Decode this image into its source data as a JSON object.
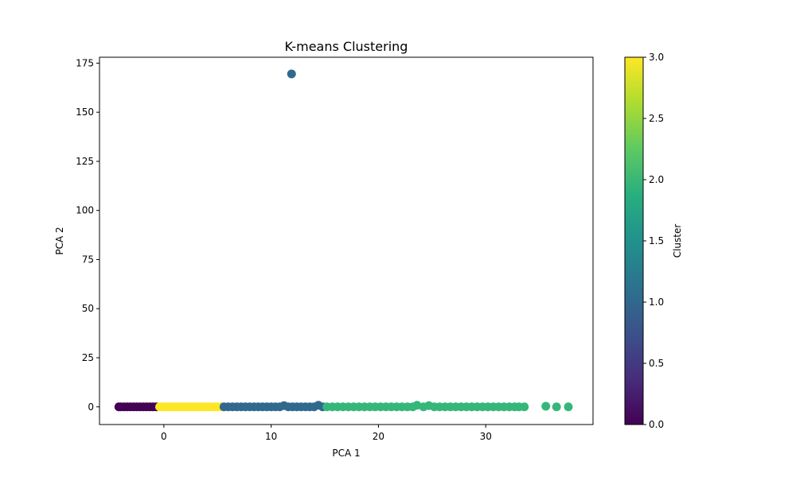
{
  "chart_data": {
    "type": "scatter",
    "title": "K-means Clustering",
    "xlabel": "PCA 1",
    "ylabel": "PCA 2",
    "xlim": [
      -6,
      40
    ],
    "ylim": [
      -9,
      178
    ],
    "x_ticks": [
      0,
      10,
      20,
      30
    ],
    "y_ticks": [
      0,
      25,
      50,
      75,
      100,
      125,
      150,
      175
    ],
    "grid": false,
    "colorbar": {
      "label": "Cluster",
      "range": [
        0.0,
        3.0
      ],
      "ticks": [
        "0.0",
        "0.5",
        "1.0",
        "1.5",
        "2.0",
        "2.5",
        "3.0"
      ],
      "colormap": "viridis"
    },
    "cluster_colors": {
      "0": "#440154",
      "1": "#31688e",
      "2": "#35b779",
      "3": "#fde725"
    },
    "series": [
      {
        "cluster": 0,
        "points": [
          [
            -4.2,
            0
          ],
          [
            -4.0,
            0
          ],
          [
            -3.7,
            0
          ],
          [
            -3.4,
            0
          ],
          [
            -3.1,
            0
          ],
          [
            -2.8,
            0
          ],
          [
            -2.5,
            0
          ],
          [
            -2.2,
            0
          ],
          [
            -1.9,
            0
          ],
          [
            -1.6,
            0
          ],
          [
            -1.3,
            0
          ],
          [
            -1.0,
            0
          ],
          [
            -0.7,
            0
          ]
        ]
      },
      {
        "cluster": 3,
        "points": [
          [
            -0.4,
            0
          ],
          [
            -0.1,
            0
          ],
          [
            0.2,
            0
          ],
          [
            0.5,
            0
          ],
          [
            0.8,
            0
          ],
          [
            1.1,
            0
          ],
          [
            1.4,
            0
          ],
          [
            1.7,
            0
          ],
          [
            2.0,
            0
          ],
          [
            2.3,
            0
          ],
          [
            2.6,
            0
          ],
          [
            2.9,
            0
          ],
          [
            3.2,
            0
          ],
          [
            3.5,
            0
          ],
          [
            3.8,
            0
          ],
          [
            4.1,
            0
          ],
          [
            4.4,
            0
          ],
          [
            4.7,
            0
          ],
          [
            5.0,
            0
          ],
          [
            5.3,
            0
          ]
        ]
      },
      {
        "cluster": 1,
        "points": [
          [
            5.6,
            0
          ],
          [
            6.0,
            0
          ],
          [
            6.4,
            0
          ],
          [
            6.8,
            0
          ],
          [
            7.2,
            0
          ],
          [
            7.6,
            0
          ],
          [
            8.0,
            0
          ],
          [
            8.4,
            0
          ],
          [
            8.8,
            0
          ],
          [
            9.2,
            0
          ],
          [
            9.6,
            0
          ],
          [
            10.0,
            0
          ],
          [
            10.4,
            0
          ],
          [
            10.8,
            0
          ],
          [
            11.2,
            0.6
          ],
          [
            11.6,
            0
          ],
          [
            12.0,
            0
          ],
          [
            12.4,
            0
          ],
          [
            12.8,
            0
          ],
          [
            13.2,
            0
          ],
          [
            13.6,
            0
          ],
          [
            14.0,
            0
          ],
          [
            14.4,
            0.8
          ],
          [
            14.8,
            0
          ],
          [
            11.9,
            169.5
          ]
        ]
      },
      {
        "cluster": 2,
        "points": [
          [
            15.2,
            0
          ],
          [
            15.7,
            0
          ],
          [
            16.2,
            0
          ],
          [
            16.7,
            0
          ],
          [
            17.2,
            0
          ],
          [
            17.7,
            0
          ],
          [
            18.2,
            0
          ],
          [
            18.7,
            0
          ],
          [
            19.2,
            0
          ],
          [
            19.7,
            0
          ],
          [
            20.2,
            0
          ],
          [
            20.7,
            0
          ],
          [
            21.2,
            0
          ],
          [
            21.7,
            0
          ],
          [
            22.2,
            0
          ],
          [
            22.7,
            0
          ],
          [
            23.2,
            0
          ],
          [
            23.6,
            0.8
          ],
          [
            24.2,
            0
          ],
          [
            24.7,
            0.6
          ],
          [
            25.2,
            0
          ],
          [
            25.7,
            0
          ],
          [
            26.2,
            0
          ],
          [
            26.7,
            0
          ],
          [
            27.2,
            0
          ],
          [
            27.7,
            0
          ],
          [
            28.2,
            0
          ],
          [
            28.7,
            0
          ],
          [
            29.2,
            0
          ],
          [
            29.7,
            0
          ],
          [
            30.2,
            0
          ],
          [
            30.7,
            0
          ],
          [
            31.2,
            0
          ],
          [
            31.7,
            0
          ],
          [
            32.2,
            0
          ],
          [
            32.7,
            0
          ],
          [
            33.1,
            0
          ],
          [
            33.6,
            0
          ],
          [
            35.6,
            0.3
          ],
          [
            36.6,
            0
          ],
          [
            37.7,
            0
          ]
        ]
      }
    ]
  }
}
